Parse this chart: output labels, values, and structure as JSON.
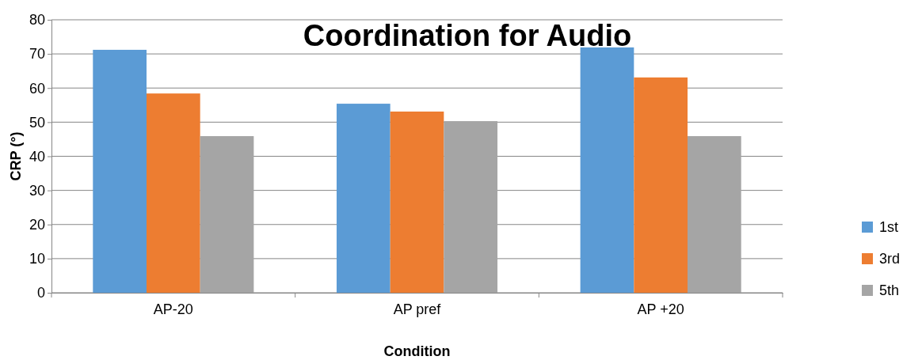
{
  "chart_data": {
    "type": "bar",
    "title": "Coordination for Audio",
    "xlabel": "Condition",
    "ylabel": "CRP (°)",
    "categories": [
      "AP-20",
      "AP pref",
      "AP +20"
    ],
    "series": [
      {
        "name": "1st",
        "color": "#5b9bd5",
        "values": [
          71.2,
          55.4,
          71.9
        ]
      },
      {
        "name": "3rd",
        "color": "#ed7d31",
        "values": [
          58.4,
          53.1,
          63.1
        ]
      },
      {
        "name": "5th",
        "color": "#a5a5a5",
        "values": [
          45.9,
          50.3,
          45.9
        ]
      }
    ],
    "ylim": [
      0,
      80
    ],
    "yticks": [
      0,
      10,
      20,
      30,
      40,
      50,
      60,
      70,
      80
    ],
    "grid": "y",
    "legend": "right"
  }
}
